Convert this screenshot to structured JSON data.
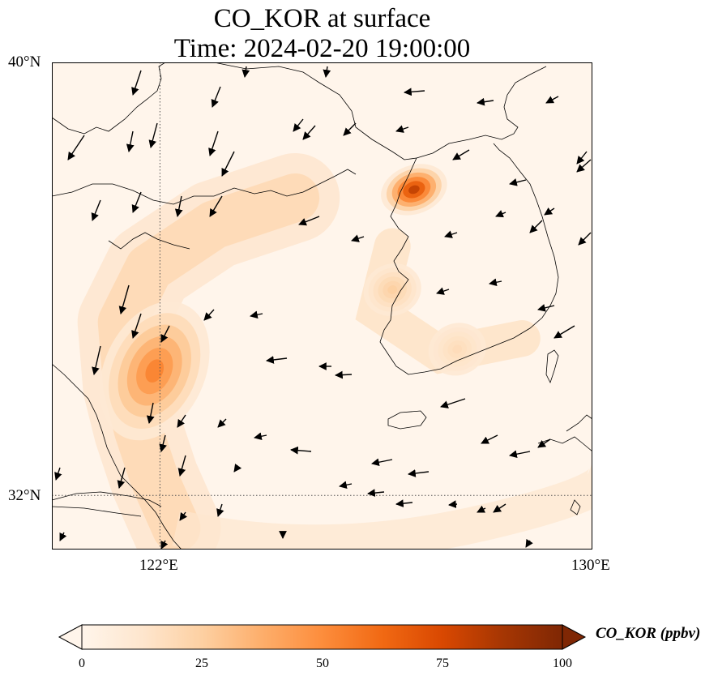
{
  "title": {
    "line1": "CO_KOR at surface",
    "line2": "Time: 2024-02-20 19:00:00"
  },
  "map": {
    "extent": {
      "lon": [
        120,
        130
      ],
      "lat": [
        31,
        40
      ]
    },
    "gridlines": {
      "lon": [
        122
      ],
      "lat": [
        32
      ],
      "style": "dotted"
    },
    "lat_ticks": [
      {
        "value": 40,
        "label": "40°N"
      },
      {
        "value": 32,
        "label": "32°N"
      }
    ],
    "lon_ticks": [
      {
        "value": 122,
        "label": "122°E"
      },
      {
        "value": 130,
        "label": "130°E"
      }
    ],
    "plumes": [
      {
        "name": "bohai-plume",
        "lon": 126.7,
        "lat": 37.65,
        "peak_ppbv": 95
      },
      {
        "name": "yellow-sea-west-plume",
        "lon": 121.9,
        "lat": 34.3,
        "peak_ppbv": 62
      },
      {
        "name": "korea-west-coast",
        "lon": 126.3,
        "lat": 35.8,
        "peak_ppbv": 28
      },
      {
        "name": "korea-south-coast",
        "lon": 127.5,
        "lat": 34.7,
        "peak_ppbv": 20
      }
    ]
  },
  "colorbar": {
    "label": "CO_KOR (ppbv)",
    "ticks": [
      "0",
      "25",
      "50",
      "75",
      "100"
    ],
    "range": [
      0,
      100
    ],
    "extend": "both",
    "colormap": [
      "#fff5eb",
      "#fee6ce",
      "#fdd0a2",
      "#fdae6b",
      "#fd8d3c",
      "#f16913",
      "#d94801",
      "#a63603",
      "#7f2704"
    ]
  }
}
